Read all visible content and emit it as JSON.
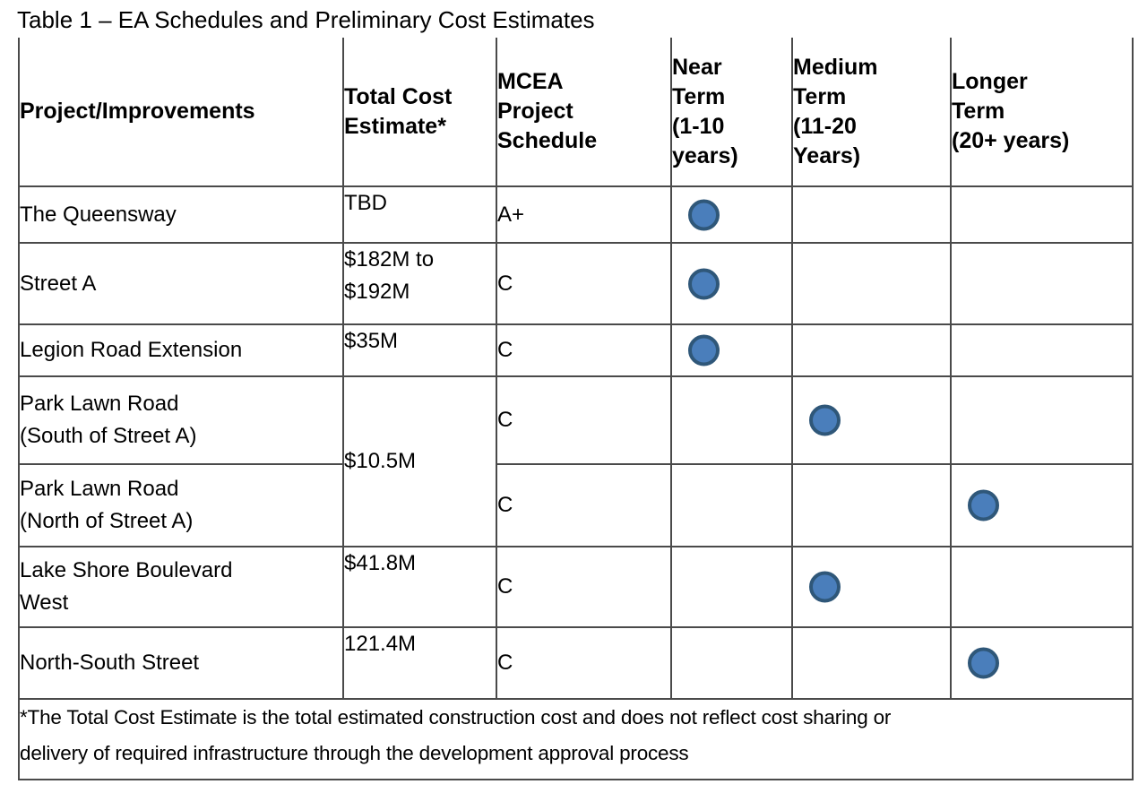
{
  "title": "Table 1 – EA Schedules and Preliminary Cost Estimates",
  "table": {
    "columns": [
      {
        "key": "project",
        "label": "Project/Improvements"
      },
      {
        "key": "cost",
        "label": "Total Cost\nEstimate*"
      },
      {
        "key": "mcea",
        "label": "MCEA\nProject\nSchedule"
      },
      {
        "key": "near",
        "label": "Near\nTerm\n(1-10\nyears)"
      },
      {
        "key": "medium",
        "label": "Medium\nTerm\n(11-20\nYears)"
      },
      {
        "key": "longer",
        "label": "Longer\nTerm\n(20+ years)"
      }
    ],
    "rows": [
      {
        "project": "The Queensway",
        "cost": "TBD",
        "mcea": "A+",
        "term": "near"
      },
      {
        "project": "Street A",
        "cost": "$182M to\n$192M",
        "mcea": "C",
        "term": "near"
      },
      {
        "project": "Legion Road Extension",
        "cost": "$35M",
        "mcea": "C",
        "term": "near"
      },
      {
        "project": "Park Lawn Road\n(South of Street A)",
        "cost": "$10.5M",
        "cost_rowspan": 2,
        "mcea": "C",
        "term": "medium"
      },
      {
        "project": "Park Lawn Road\n(North of Street A)",
        "mcea": "C",
        "term": "longer"
      },
      {
        "project": "Lake Shore Boulevard\nWest",
        "cost": "$41.8M",
        "mcea": "C",
        "term": "medium"
      },
      {
        "project": "North-South Street",
        "cost": "121.4M",
        "mcea": "C",
        "term": "longer"
      }
    ],
    "footnote_line1": "*The Total Cost Estimate is the total estimated construction cost and does not reflect cost sharing or",
    "footnote_line2": "delivery of required infrastructure through the development approval process"
  },
  "colors": {
    "dot_fill": "#4A7EBB",
    "dot_border": "#2F5779",
    "grid": "#4a4a4a",
    "text": "#000000",
    "background": "#ffffff"
  }
}
